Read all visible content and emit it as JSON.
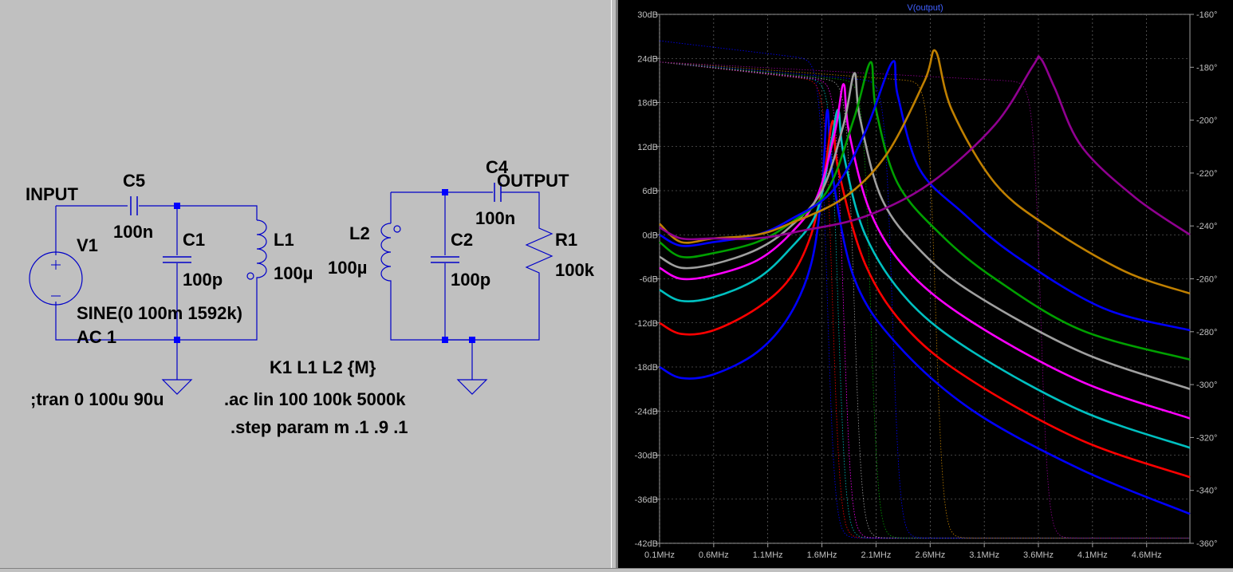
{
  "schematic": {
    "labels": {
      "input_net": "INPUT",
      "output_net": "OUTPUT",
      "v1_name": "V1",
      "v1_value": "SINE(0 100m 1592k)",
      "v1_ac": "AC 1",
      "c5_name": "C5",
      "c5_value": "100n",
      "c1_name": "C1",
      "c1_value": "100p",
      "l1_name": "L1",
      "l1_value": "100µ",
      "l2_name": "L2",
      "l2_value": "100µ",
      "c2_name": "C2",
      "c2_value": "100p",
      "c4_name": "C4",
      "c4_value": "100n",
      "r1_name": "R1",
      "r1_value": "100k"
    },
    "directives": {
      "coupling": "K1 L1 L2 {M}",
      "tran": ";tran 0 100u 90u",
      "ac": ".ac lin 100 100k 5000k",
      "step": ".step param m .1 .9 .1"
    },
    "wire_color": "#0000c8",
    "junction_color": "#0000ff"
  },
  "plot": {
    "title": "V(output)",
    "background": "#000000",
    "grid_color": "#808080",
    "chart_data": {
      "type": "line",
      "x_axis": {
        "min": 0.1,
        "max": 5.0,
        "unit": "MHz",
        "ticks": [
          "0.1MHz",
          "0.6MHz",
          "1.1MHz",
          "1.6MHz",
          "2.1MHz",
          "2.6MHz",
          "3.1MHz",
          "3.6MHz",
          "4.1MHz",
          "4.6MHz"
        ],
        "tick_values": [
          0.1,
          0.6,
          1.1,
          1.6,
          2.1,
          2.6,
          3.1,
          3.6,
          4.1,
          4.6
        ]
      },
      "y_left": {
        "min": -42,
        "max": 30,
        "unit": "dB",
        "ticks": [
          "30dB",
          "24dB",
          "18dB",
          "12dB",
          "6dB",
          "0dB",
          "-6dB",
          "-12dB",
          "-18dB",
          "-24dB",
          "-30dB",
          "-36dB",
          "-42dB"
        ],
        "tick_values": [
          30,
          24,
          18,
          12,
          6,
          0,
          -6,
          -12,
          -18,
          -24,
          -30,
          -36,
          -42
        ]
      },
      "y_right": {
        "min": -360,
        "max": -160,
        "unit": "deg",
        "ticks": [
          "-160°",
          "-180°",
          "-200°",
          "-220°",
          "-240°",
          "-260°",
          "-280°",
          "-300°",
          "-320°",
          "-340°",
          "-360°"
        ],
        "tick_values": [
          -160,
          -180,
          -200,
          -220,
          -240,
          -260,
          -280,
          -300,
          -320,
          -340,
          -360
        ]
      },
      "grid": true,
      "series": [
        {
          "color": "#0000ff",
          "x": [
            0.1,
            0.3,
            0.6,
            1.0,
            1.3,
            1.5,
            1.6,
            1.65,
            1.7,
            1.9,
            2.3,
            3.0,
            4.0,
            5.0
          ],
          "db": [
            -18,
            -19.5,
            -19,
            -16,
            -11,
            -4,
            6,
            17,
            8,
            -6,
            -15,
            -24,
            -32,
            -38
          ]
        },
        {
          "color": "#ff0000",
          "x": [
            0.1,
            0.3,
            0.6,
            1.0,
            1.3,
            1.5,
            1.62,
            1.7,
            1.75,
            2.0,
            2.4,
            3.0,
            4.0,
            5.0
          ],
          "db": [
            -12,
            -13.5,
            -13,
            -10,
            -6,
            0,
            8,
            15.5,
            9,
            -4,
            -13,
            -20,
            -28,
            -33
          ]
        },
        {
          "color": "#00c0c0",
          "x": [
            0.1,
            0.3,
            0.6,
            1.0,
            1.3,
            1.55,
            1.68,
            1.75,
            1.8,
            2.0,
            2.4,
            3.0,
            4.0,
            5.0
          ],
          "db": [
            -7.5,
            -9,
            -8.5,
            -6,
            -2,
            3,
            12,
            17,
            11,
            0,
            -9,
            -16,
            -24,
            -29
          ]
        },
        {
          "color": "#ff00ff",
          "x": [
            0.1,
            0.3,
            0.6,
            1.0,
            1.3,
            1.55,
            1.72,
            1.8,
            1.85,
            2.05,
            2.4,
            3.0,
            4.0,
            5.0
          ],
          "db": [
            -4.5,
            -6,
            -5.5,
            -3.5,
            0,
            5,
            14,
            20.5,
            14,
            3,
            -5,
            -12,
            -20,
            -25
          ]
        },
        {
          "color": "#a0a0a0",
          "x": [
            0.1,
            0.3,
            0.6,
            1.0,
            1.3,
            1.6,
            1.8,
            1.9,
            1.95,
            2.15,
            2.5,
            3.0,
            4.0,
            5.0
          ],
          "db": [
            -3,
            -4.5,
            -4,
            -2,
            1,
            6,
            15,
            22,
            16,
            5,
            -2,
            -8,
            -16,
            -21
          ]
        },
        {
          "color": "#00a000",
          "x": [
            0.1,
            0.3,
            0.6,
            1.0,
            1.3,
            1.65,
            1.9,
            2.05,
            2.1,
            2.3,
            2.7,
            3.2,
            4.0,
            5.0
          ],
          "db": [
            -1,
            -3,
            -2.5,
            -1,
            1.5,
            6,
            16,
            23.5,
            17,
            7,
            0,
            -6,
            -13,
            -17
          ]
        },
        {
          "color": "#0000ff",
          "x": [
            0.1,
            0.3,
            0.6,
            1.0,
            1.3,
            1.7,
            2.0,
            2.25,
            2.3,
            2.5,
            2.9,
            3.4,
            4.2,
            5.0
          ],
          "db": [
            0,
            -1.5,
            -1,
            0,
            2,
            6,
            14,
            23.5,
            19,
            9,
            3,
            -3,
            -10,
            -13
          ]
        },
        {
          "color": "#c08000",
          "x": [
            0.1,
            0.3,
            0.6,
            1.0,
            1.3,
            1.8,
            2.2,
            2.55,
            2.65,
            2.8,
            3.2,
            3.7,
            4.4,
            5.0
          ],
          "db": [
            1.5,
            -1,
            -0.5,
            0,
            1.5,
            5,
            11,
            21,
            25,
            17,
            7,
            1,
            -5,
            -8
          ]
        },
        {
          "color": "#900090",
          "x": [
            0.1,
            0.3,
            0.6,
            1.0,
            1.4,
            2.0,
            2.6,
            3.2,
            3.55,
            3.62,
            3.75,
            4.0,
            4.5,
            5.0
          ],
          "db": [
            1,
            -0.5,
            -0.5,
            -0.5,
            0.5,
            2.5,
            7,
            15,
            23,
            24,
            20,
            12,
            5,
            0
          ]
        }
      ],
      "phase_series_note_color_same_as_db": true
    }
  }
}
